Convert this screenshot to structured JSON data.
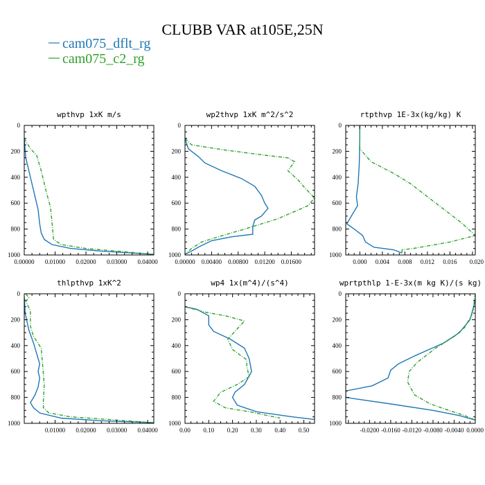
{
  "figure": {
    "title": "CLUBB VAR at105E,25N",
    "legend": [
      {
        "label": "cam075_dflt_rg",
        "color": "#1f77b4",
        "dash": "solid"
      },
      {
        "label": "cam075_c2_rg",
        "color": "#2ca02c",
        "dash": "dashdot"
      }
    ]
  },
  "chart_data": [
    {
      "type": "line",
      "title": "wpthvp   1xK m/s",
      "xlim": [
        0,
        0.042
      ],
      "ylim": [
        0,
        1000
      ],
      "y_inverted": true,
      "xticks": [
        0,
        0.01,
        0.02,
        0.03,
        0.04
      ],
      "xtick_labels": [
        "0.00000",
        "0.01000",
        "0.02000",
        "0.03000",
        "0.04000"
      ],
      "yticks": [
        0,
        200,
        400,
        600,
        800,
        1000
      ],
      "ytick_labels": [
        "0",
        "200",
        "400",
        "600",
        "800",
        "1000"
      ],
      "series": [
        {
          "name": "cam075_dflt_rg",
          "points": [
            [
              0,
              100
            ],
            [
              0.0005,
              250
            ],
            [
              0.0015,
              350
            ],
            [
              0.0025,
              450
            ],
            [
              0.0035,
              550
            ],
            [
              0.0045,
              650
            ],
            [
              0.005,
              760
            ],
            [
              0.0055,
              830
            ],
            [
              0.0065,
              880
            ],
            [
              0.009,
              920
            ],
            [
              0.015,
              950
            ],
            [
              0.025,
              970
            ],
            [
              0.035,
              985
            ],
            [
              0.042,
              995
            ]
          ]
        },
        {
          "name": "cam075_c2_rg",
          "points": [
            [
              0,
              100
            ],
            [
              0.002,
              180
            ],
            [
              0.004,
              230
            ],
            [
              0.0055,
              350
            ],
            [
              0.007,
              500
            ],
            [
              0.0085,
              630
            ],
            [
              0.009,
              750
            ],
            [
              0.0095,
              880
            ],
            [
              0.012,
              920
            ],
            [
              0.02,
              950
            ],
            [
              0.03,
              970
            ],
            [
              0.042,
              995
            ]
          ]
        }
      ]
    },
    {
      "type": "line",
      "title": "wp2thvp   1xK m^2/s^2",
      "xlim": [
        0,
        0.0195
      ],
      "ylim": [
        0,
        1000
      ],
      "y_inverted": true,
      "xticks": [
        0,
        0.004,
        0.008,
        0.012,
        0.016
      ],
      "xtick_labels": [
        "0.00000",
        "0.00400",
        "0.00800",
        "0.01200",
        "0.01600"
      ],
      "yticks": [
        0,
        200,
        400,
        600,
        800,
        1000
      ],
      "ytick_labels": [
        "0",
        "200",
        "400",
        "600",
        "800",
        "1000"
      ],
      "series": [
        {
          "name": "cam075_dflt_rg",
          "points": [
            [
              0,
              100
            ],
            [
              0.0005,
              180
            ],
            [
              0.002,
              240
            ],
            [
              0.003,
              290
            ],
            [
              0.0055,
              350
            ],
            [
              0.0085,
              410
            ],
            [
              0.0105,
              470
            ],
            [
              0.0115,
              540
            ],
            [
              0.012,
              600
            ],
            [
              0.0125,
              640
            ],
            [
              0.0115,
              700
            ],
            [
              0.0105,
              730
            ],
            [
              0.0102,
              780
            ],
            [
              0.0102,
              840
            ],
            [
              0.007,
              860
            ],
            [
              0.004,
              890
            ],
            [
              0.002,
              940
            ],
            [
              0.001,
              970
            ],
            [
              0,
              995
            ]
          ]
        },
        {
          "name": "cam075_c2_rg",
          "points": [
            [
              0,
              100
            ],
            [
              0.001,
              150
            ],
            [
              0.006,
              190
            ],
            [
              0.012,
              230
            ],
            [
              0.0155,
              250
            ],
            [
              0.0165,
              280
            ],
            [
              0.0155,
              350
            ],
            [
              0.017,
              420
            ],
            [
              0.018,
              480
            ],
            [
              0.0195,
              560
            ],
            [
              0.0185,
              620
            ],
            [
              0.014,
              720
            ],
            [
              0.009,
              800
            ],
            [
              0.005,
              860
            ],
            [
              0.0025,
              900
            ],
            [
              0.001,
              950
            ],
            [
              0,
              995
            ]
          ]
        }
      ]
    },
    {
      "type": "line",
      "title": "rtpthvp   1E-3x(kg/kg) K",
      "xlim": [
        -0.0025,
        0.0205
      ],
      "ylim": [
        0,
        1000
      ],
      "y_inverted": true,
      "xticks": [
        0,
        0.004,
        0.008,
        0.012,
        0.016,
        0.02
      ],
      "xtick_labels": [
        "0.000",
        "0.004",
        "0.008",
        "0.012",
        "0.016",
        "0.020"
      ],
      "yticks": [
        0,
        200,
        400,
        600,
        800,
        1000
      ],
      "ytick_labels": [
        "0",
        "200",
        "400",
        "600",
        "800",
        "1000"
      ],
      "series": [
        {
          "name": "cam075_dflt_rg",
          "points": [
            [
              0,
              0
            ],
            [
              0,
              100
            ],
            [
              -0.0001,
              300
            ],
            [
              -0.0003,
              450
            ],
            [
              -0.0006,
              550
            ],
            [
              -0.0004,
              620
            ],
            [
              -0.0015,
              700
            ],
            [
              -0.0023,
              760
            ],
            [
              -0.001,
              800
            ],
            [
              0.0005,
              850
            ],
            [
              0.001,
              900
            ],
            [
              0.0025,
              940
            ],
            [
              0.006,
              960
            ],
            [
              0.0075,
              985
            ]
          ]
        },
        {
          "name": "cam075_c2_rg",
          "points": [
            [
              0,
              0
            ],
            [
              0,
              180
            ],
            [
              0.002,
              280
            ],
            [
              0.006,
              370
            ],
            [
              0.009,
              450
            ],
            [
              0.012,
              550
            ],
            [
              0.015,
              650
            ],
            [
              0.018,
              750
            ],
            [
              0.0205,
              850
            ],
            [
              0.016,
              900
            ],
            [
              0.0095,
              950
            ],
            [
              0.0075,
              960
            ],
            [
              0.0075,
              985
            ]
          ]
        }
      ]
    },
    {
      "type": "line",
      "title": "thlpthvp   1xK^2",
      "xlim": [
        0,
        0.042
      ],
      "ylim": [
        0,
        1000
      ],
      "y_inverted": true,
      "xticks": [
        0.01,
        0.02,
        0.03,
        0.04
      ],
      "xtick_labels": [
        "0.01000",
        "0.02000",
        "0.03000",
        "0.04000"
      ],
      "yticks": [
        0,
        200,
        400,
        600,
        800,
        1000
      ],
      "ytick_labels": [
        "0",
        "200",
        "400",
        "600",
        "800",
        "1000"
      ],
      "series": [
        {
          "name": "cam075_dflt_rg",
          "points": [
            [
              0,
              20
            ],
            [
              0.0003,
              150
            ],
            [
              0.0015,
              280
            ],
            [
              0.003,
              380
            ],
            [
              0.004,
              460
            ],
            [
              0.005,
              540
            ],
            [
              0.0045,
              600
            ],
            [
              0.005,
              650
            ],
            [
              0.0045,
              720
            ],
            [
              0.0035,
              780
            ],
            [
              0.002,
              840
            ],
            [
              0.003,
              880
            ],
            [
              0.005,
              920
            ],
            [
              0.012,
              960
            ],
            [
              0.025,
              980
            ],
            [
              0.042,
              995
            ]
          ]
        },
        {
          "name": "cam075_c2_rg",
          "points": [
            [
              0.0005,
              0
            ],
            [
              0.0015,
              30
            ],
            [
              0.0005,
              60
            ],
            [
              0.002,
              130
            ],
            [
              0.002,
              250
            ],
            [
              0.003,
              330
            ],
            [
              0.0055,
              420
            ],
            [
              0.006,
              560
            ],
            [
              0.0065,
              700
            ],
            [
              0.0062,
              820
            ],
            [
              0.0062,
              880
            ],
            [
              0.008,
              920
            ],
            [
              0.015,
              950
            ],
            [
              0.03,
              975
            ],
            [
              0.042,
              995
            ]
          ]
        }
      ]
    },
    {
      "type": "line",
      "title": "wp4   1x(m^4)/(s^4)",
      "xlim": [
        0,
        0.545
      ],
      "ylim": [
        0,
        1000
      ],
      "y_inverted": true,
      "xticks": [
        0,
        0.1,
        0.2,
        0.3,
        0.4,
        0.5
      ],
      "xtick_labels": [
        "0.00",
        "0.10",
        "0.20",
        "0.30",
        "0.40",
        "0.50"
      ],
      "yticks": [
        0,
        200,
        400,
        600,
        800,
        1000
      ],
      "ytick_labels": [
        "0",
        "200",
        "400",
        "600",
        "800",
        "1000"
      ],
      "series": [
        {
          "name": "cam075_dflt_rg",
          "points": [
            [
              0,
              100
            ],
            [
              0.05,
              120
            ],
            [
              0.1,
              170
            ],
            [
              0.1,
              240
            ],
            [
              0.12,
              290
            ],
            [
              0.19,
              350
            ],
            [
              0.25,
              420
            ],
            [
              0.27,
              500
            ],
            [
              0.28,
              600
            ],
            [
              0.25,
              700
            ],
            [
              0.21,
              760
            ],
            [
              0.2,
              800
            ],
            [
              0.22,
              860
            ],
            [
              0.3,
              910
            ],
            [
              0.45,
              950
            ],
            [
              0.545,
              970
            ]
          ]
        },
        {
          "name": "cam075_c2_rg",
          "points": [
            [
              0,
              100
            ],
            [
              0.08,
              140
            ],
            [
              0.17,
              170
            ],
            [
              0.25,
              210
            ],
            [
              0.22,
              270
            ],
            [
              0.18,
              350
            ],
            [
              0.2,
              430
            ],
            [
              0.26,
              510
            ],
            [
              0.26,
              560
            ],
            [
              0.27,
              640
            ],
            [
              0.22,
              700
            ],
            [
              0.15,
              760
            ],
            [
              0.12,
              830
            ],
            [
              0.17,
              880
            ],
            [
              0.27,
              910
            ],
            [
              0.4,
              960
            ]
          ]
        }
      ]
    },
    {
      "type": "line",
      "title": "wprtpthlp   1-E-3x(m kg K)/(s kg)",
      "xlim": [
        -0.0245,
        0
      ],
      "ylim": [
        0,
        1000
      ],
      "y_inverted": true,
      "xticks": [
        -0.02,
        -0.016,
        -0.012,
        -0.008,
        -0.004,
        0
      ],
      "xtick_labels": [
        "-0.0200",
        "-0.0160",
        "-0.0120",
        "-0.0080",
        "-0.0040",
        "0.0000"
      ],
      "yticks": [
        0,
        200,
        400,
        600,
        800,
        1000
      ],
      "ytick_labels": [
        "0",
        "200",
        "400",
        "600",
        "800",
        "1000"
      ],
      "series": [
        {
          "name": "cam075_dflt_rg",
          "points": [
            [
              0,
              50
            ],
            [
              -0.001,
              200
            ],
            [
              -0.003,
              300
            ],
            [
              -0.006,
              380
            ],
            [
              -0.0115,
              480
            ],
            [
              -0.0145,
              540
            ],
            [
              -0.016,
              590
            ],
            [
              -0.0165,
              650
            ],
            [
              -0.0195,
              710
            ],
            [
              -0.0245,
              750
            ],
            [
              -0.0245,
              800
            ],
            [
              -0.016,
              850
            ],
            [
              -0.008,
              900
            ],
            [
              -0.003,
              940
            ],
            [
              0,
              975
            ]
          ]
        },
        {
          "name": "cam075_c2_rg",
          "points": [
            [
              0,
              0
            ],
            [
              -0.0005,
              150
            ],
            [
              -0.002,
              260
            ],
            [
              -0.004,
              330
            ],
            [
              -0.0075,
              420
            ],
            [
              -0.011,
              530
            ],
            [
              -0.0125,
              600
            ],
            [
              -0.0128,
              680
            ],
            [
              -0.0115,
              780
            ],
            [
              -0.0085,
              850
            ],
            [
              -0.005,
              900
            ],
            [
              -0.002,
              940
            ],
            [
              0,
              975
            ]
          ]
        }
      ]
    }
  ]
}
